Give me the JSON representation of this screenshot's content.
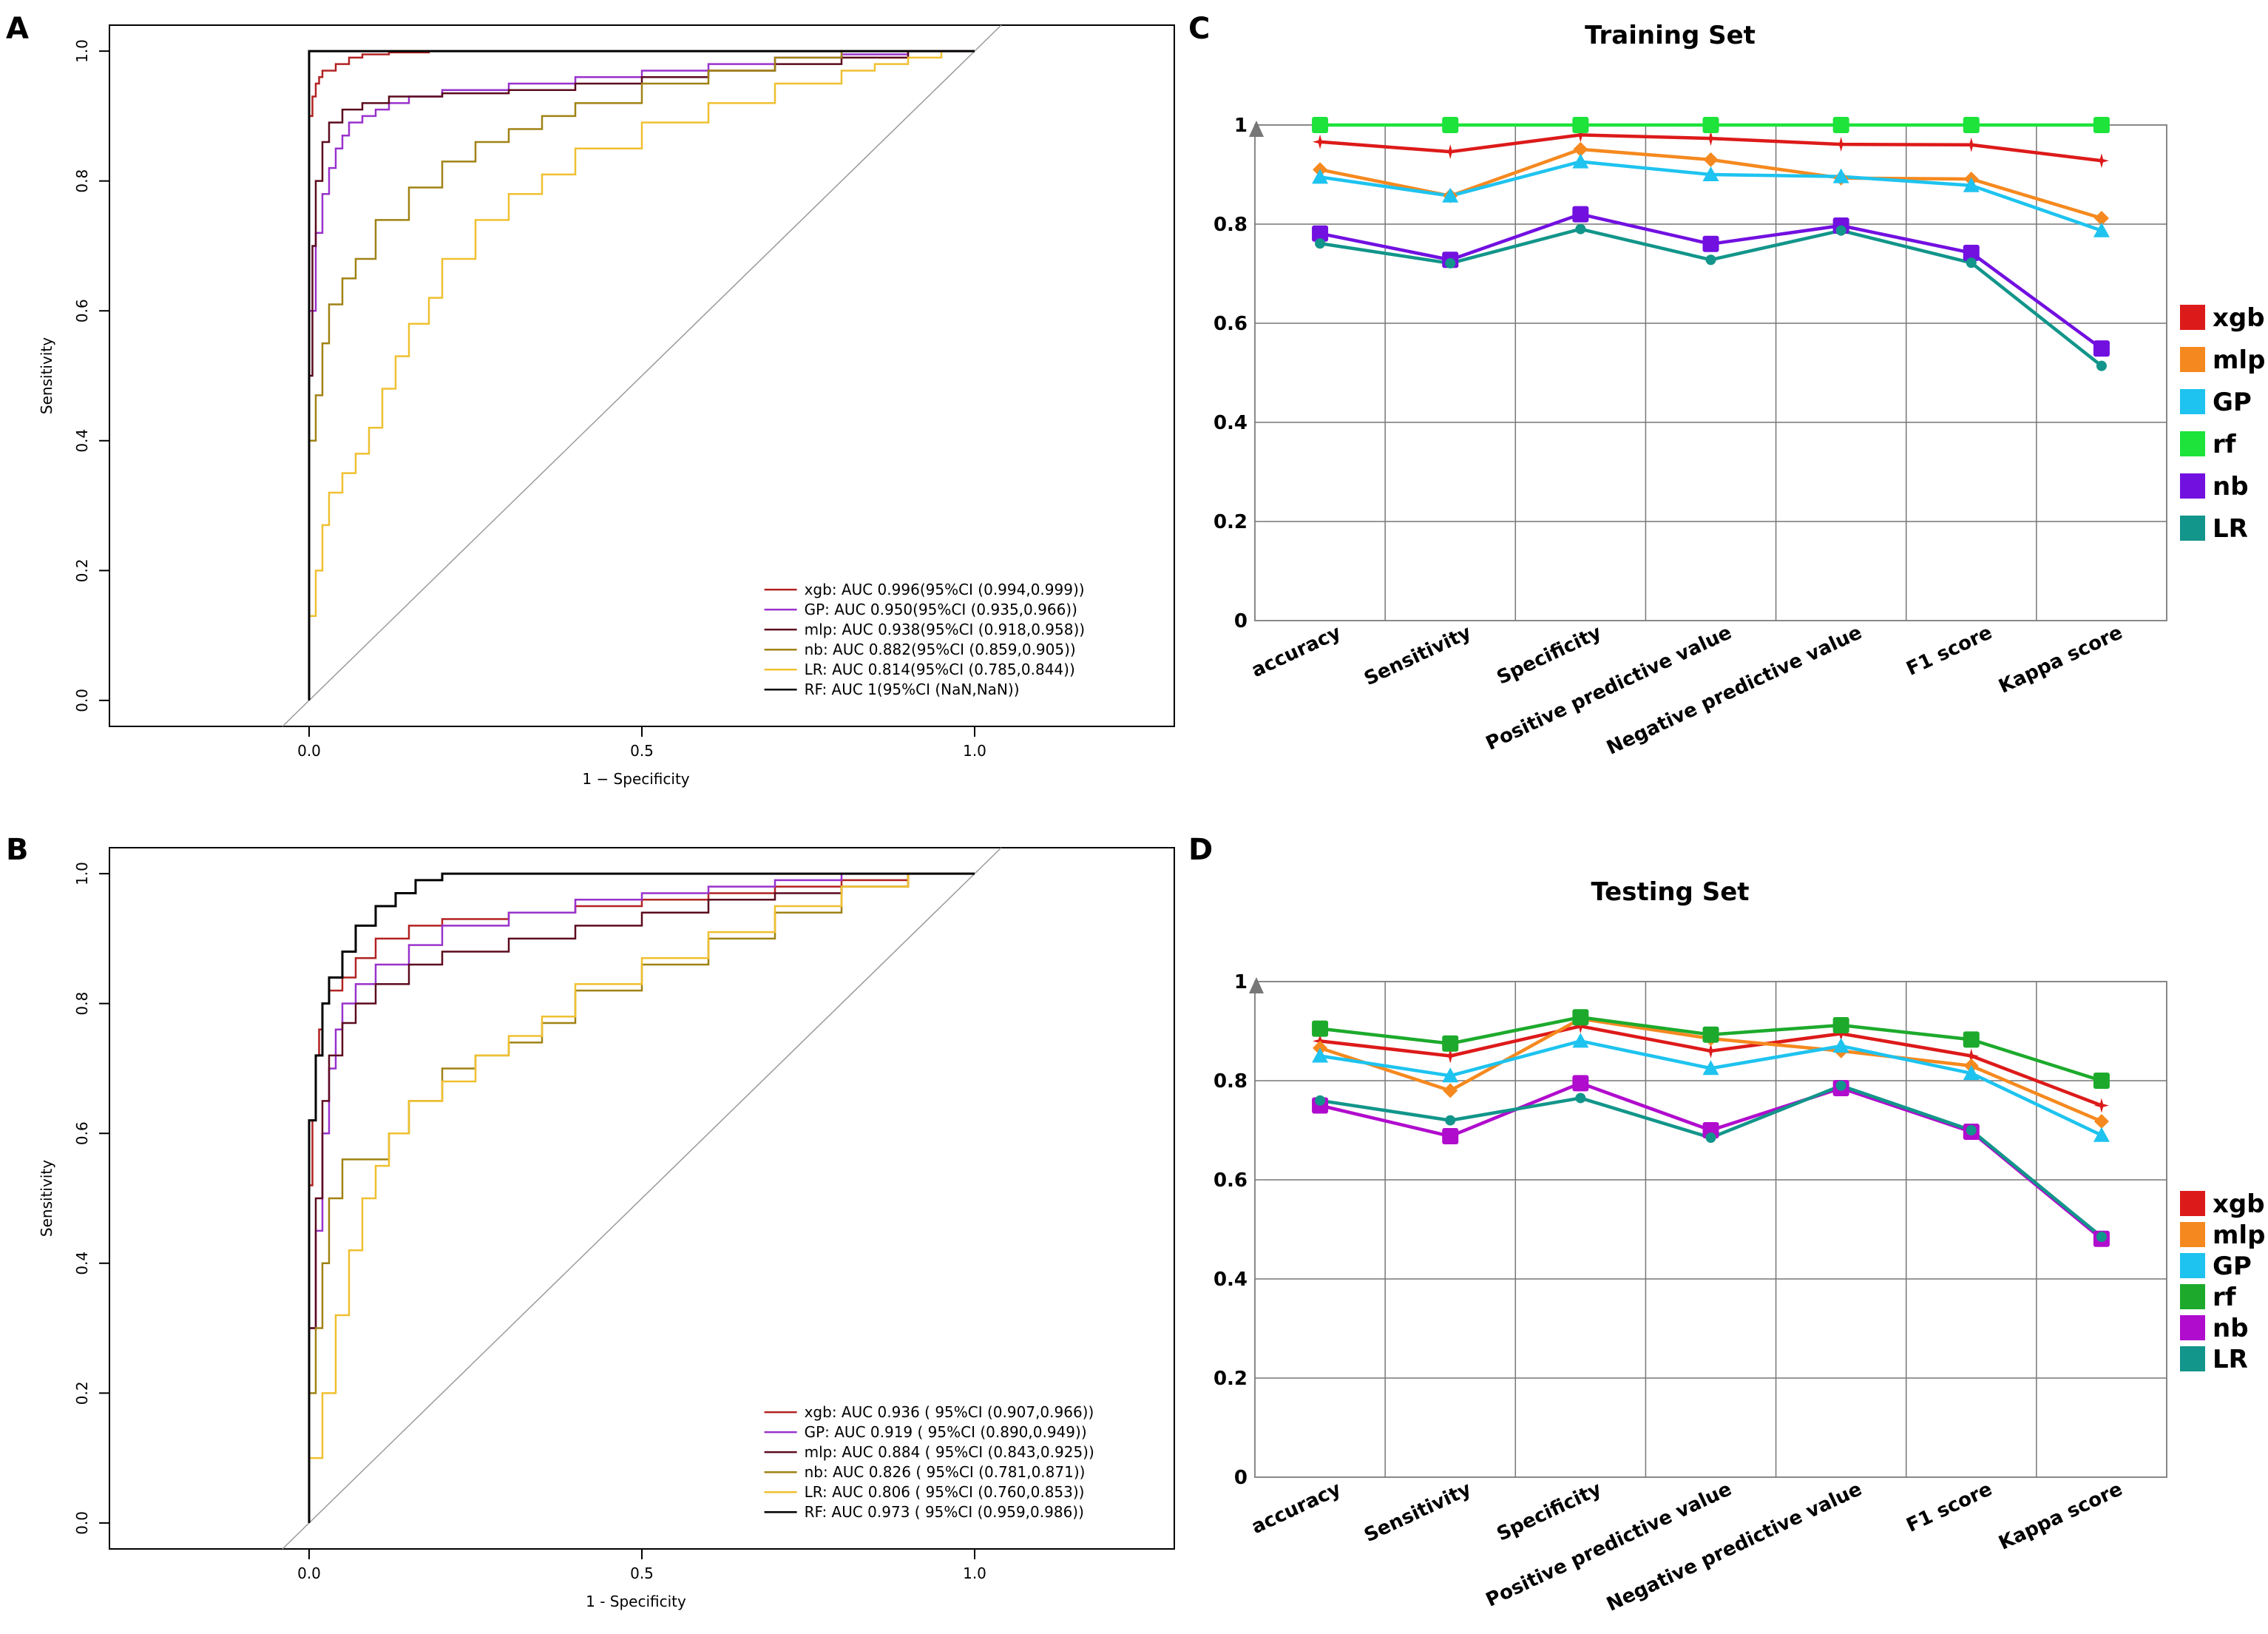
{
  "figure": {
    "panel_labels": [
      "A",
      "B",
      "C",
      "D"
    ]
  },
  "chart_data": [
    {
      "panel": "A",
      "type": "line",
      "subtype": "roc",
      "xlabel": "1 − Specificity",
      "ylabel": "Sensitivity",
      "xlim": [
        -0.3,
        1.3
      ],
      "ylim": [
        -0.04,
        1.04
      ],
      "xticks": [
        "0.0",
        "0.5",
        "1.0"
      ],
      "yticks": [
        "0.0",
        "0.2",
        "0.4",
        "0.6",
        "0.8",
        "1.0"
      ],
      "legend_position": "bottom-right",
      "series": [
        {
          "name": "xgb",
          "label": "xgb: AUC 0.996(95%CI (0.994,0.999))",
          "color": "#b22222",
          "x": [
            0,
            0,
            0.005,
            0.01,
            0.015,
            0.02,
            0.04,
            0.06,
            0.08,
            0.12,
            0.18,
            0.25,
            1.0
          ],
          "y": [
            0,
            0.85,
            0.9,
            0.93,
            0.95,
            0.96,
            0.97,
            0.98,
            0.99,
            0.995,
            0.998,
            1.0,
            1.0
          ]
        },
        {
          "name": "GP",
          "label": "GP: AUC 0.950(95%CI (0.935,0.966))",
          "color": "#9932cc",
          "x": [
            0,
            0,
            0.01,
            0.02,
            0.03,
            0.04,
            0.05,
            0.06,
            0.08,
            0.1,
            0.12,
            0.15,
            0.2,
            0.3,
            0.4,
            0.5,
            0.6,
            0.7,
            0.8,
            0.9,
            0.95,
            1.0
          ],
          "y": [
            0,
            0.3,
            0.6,
            0.72,
            0.78,
            0.82,
            0.85,
            0.87,
            0.89,
            0.9,
            0.91,
            0.92,
            0.93,
            0.94,
            0.95,
            0.96,
            0.97,
            0.98,
            0.99,
            0.995,
            1.0,
            1.0
          ]
        },
        {
          "name": "mlp",
          "label": "mlp: AUC 0.938(95%CI (0.918,0.958))",
          "color": "#5c0a1e",
          "x": [
            0,
            0,
            0.005,
            0.01,
            0.02,
            0.03,
            0.05,
            0.08,
            0.12,
            0.2,
            0.3,
            0.4,
            0.5,
            0.6,
            0.7,
            0.8,
            0.9,
            0.95,
            1.0
          ],
          "y": [
            0,
            0.22,
            0.5,
            0.7,
            0.8,
            0.86,
            0.89,
            0.91,
            0.92,
            0.93,
            0.935,
            0.94,
            0.95,
            0.96,
            0.97,
            0.98,
            0.99,
            1.0,
            1.0
          ]
        },
        {
          "name": "nb",
          "label": "nb: AUC 0.882(95%CI (0.859,0.905))",
          "color": "#a08214",
          "x": [
            0,
            0,
            0.01,
            0.02,
            0.03,
            0.05,
            0.07,
            0.1,
            0.15,
            0.2,
            0.25,
            0.3,
            0.35,
            0.4,
            0.5,
            0.6,
            0.7,
            0.8,
            0.9,
            1.0
          ],
          "y": [
            0,
            0.3,
            0.4,
            0.47,
            0.55,
            0.61,
            0.65,
            0.68,
            0.74,
            0.79,
            0.83,
            0.86,
            0.88,
            0.9,
            0.92,
            0.95,
            0.97,
            0.99,
            1.0,
            1.0
          ]
        },
        {
          "name": "LR",
          "label": "LR: AUC 0.814(95%CI (0.785,0.844))",
          "color": "#f0c030",
          "x": [
            0,
            0,
            0.01,
            0.02,
            0.03,
            0.05,
            0.07,
            0.09,
            0.11,
            0.13,
            0.15,
            0.18,
            0.2,
            0.25,
            0.3,
            0.35,
            0.4,
            0.5,
            0.6,
            0.7,
            0.8,
            0.85,
            0.9,
            0.95,
            1.0
          ],
          "y": [
            0,
            0.08,
            0.13,
            0.2,
            0.27,
            0.32,
            0.35,
            0.38,
            0.42,
            0.48,
            0.53,
            0.58,
            0.62,
            0.68,
            0.74,
            0.78,
            0.81,
            0.85,
            0.89,
            0.92,
            0.95,
            0.97,
            0.98,
            0.99,
            1.0
          ]
        },
        {
          "name": "RF",
          "label": "RF: AUC 1(95%CI (NaN,NaN))",
          "color": "#000000",
          "x": [
            0,
            0,
            1.0
          ],
          "y": [
            0,
            1.0,
            1.0
          ]
        }
      ]
    },
    {
      "panel": "B",
      "type": "line",
      "subtype": "roc",
      "xlabel": "1 - Specificity",
      "ylabel": "Sensitivity",
      "xlim": [
        -0.3,
        1.3
      ],
      "ylim": [
        -0.04,
        1.04
      ],
      "xticks": [
        "0.0",
        "0.5",
        "1.0"
      ],
      "yticks": [
        "0.0",
        "0.2",
        "0.4",
        "0.6",
        "0.8",
        "1.0"
      ],
      "legend_position": "bottom-right",
      "series": [
        {
          "name": "xgb",
          "label": "xgb: AUC 0.936  ( 95%CI (0.907,0.966))",
          "color": "#b22222",
          "x": [
            0,
            0,
            0.005,
            0.01,
            0.015,
            0.02,
            0.03,
            0.05,
            0.07,
            0.1,
            0.15,
            0.2,
            0.3,
            0.4,
            0.5,
            0.6,
            0.7,
            0.8,
            0.9,
            1.0
          ],
          "y": [
            0,
            0.38,
            0.52,
            0.62,
            0.72,
            0.76,
            0.8,
            0.82,
            0.84,
            0.87,
            0.9,
            0.92,
            0.93,
            0.94,
            0.95,
            0.96,
            0.97,
            0.98,
            0.99,
            1.0
          ]
        },
        {
          "name": "GP",
          "label": "GP: AUC 0.919  ( 95%CI (0.890,0.949))",
          "color": "#9932cc",
          "x": [
            0,
            0,
            0.01,
            0.02,
            0.03,
            0.04,
            0.05,
            0.07,
            0.1,
            0.15,
            0.2,
            0.3,
            0.4,
            0.5,
            0.6,
            0.7,
            0.8,
            0.9,
            1.0
          ],
          "y": [
            0,
            0.22,
            0.3,
            0.45,
            0.6,
            0.7,
            0.76,
            0.8,
            0.83,
            0.86,
            0.89,
            0.92,
            0.94,
            0.96,
            0.97,
            0.98,
            0.99,
            1.0,
            1.0
          ]
        },
        {
          "name": "mlp",
          "label": "mlp: AUC 0.884  ( 95%CI (0.843,0.925))",
          "color": "#5c0a1e",
          "x": [
            0,
            0,
            0.01,
            0.02,
            0.03,
            0.05,
            0.07,
            0.1,
            0.15,
            0.2,
            0.3,
            0.4,
            0.5,
            0.6,
            0.7,
            0.8,
            0.9,
            1.0
          ],
          "y": [
            0,
            0.1,
            0.3,
            0.5,
            0.65,
            0.72,
            0.77,
            0.8,
            0.83,
            0.86,
            0.88,
            0.9,
            0.92,
            0.94,
            0.96,
            0.97,
            0.98,
            1.0
          ]
        },
        {
          "name": "nb",
          "label": "nb: AUC 0.826  ( 95%CI (0.781,0.871))",
          "color": "#a08214",
          "x": [
            0,
            0,
            0.01,
            0.02,
            0.03,
            0.05,
            0.1,
            0.12,
            0.15,
            0.2,
            0.25,
            0.3,
            0.35,
            0.4,
            0.5,
            0.6,
            0.7,
            0.8,
            0.9,
            1.0
          ],
          "y": [
            0,
            0.1,
            0.2,
            0.3,
            0.4,
            0.5,
            0.56,
            0.56,
            0.6,
            0.65,
            0.7,
            0.72,
            0.74,
            0.77,
            0.82,
            0.86,
            0.9,
            0.94,
            0.98,
            1.0
          ]
        },
        {
          "name": "LR",
          "label": "LR: AUC 0.806  ( 95%CI (0.760,0.853))",
          "color": "#f0c030",
          "x": [
            0,
            0,
            0.02,
            0.04,
            0.06,
            0.08,
            0.1,
            0.12,
            0.15,
            0.2,
            0.25,
            0.3,
            0.35,
            0.4,
            0.5,
            0.6,
            0.7,
            0.8,
            0.9,
            1.0
          ],
          "y": [
            0,
            0.04,
            0.1,
            0.2,
            0.32,
            0.42,
            0.5,
            0.55,
            0.6,
            0.65,
            0.68,
            0.72,
            0.75,
            0.78,
            0.83,
            0.87,
            0.91,
            0.95,
            0.98,
            1.0
          ]
        },
        {
          "name": "RF",
          "label": "RF: AUC 0.973  ( 95%CI (0.959,0.986))",
          "color": "#000000",
          "x": [
            0,
            0,
            0.01,
            0.02,
            0.03,
            0.05,
            0.07,
            0.1,
            0.13,
            0.16,
            0.2,
            0.25,
            0.3,
            0.4,
            1.0
          ],
          "y": [
            0,
            0.52,
            0.62,
            0.72,
            0.8,
            0.84,
            0.88,
            0.92,
            0.95,
            0.97,
            0.99,
            1.0,
            1.0,
            1.0,
            1.0
          ]
        }
      ]
    },
    {
      "panel": "C",
      "type": "line",
      "title": "Training Set",
      "categories": [
        "accuracy",
        "Sensitivity",
        "Specificity",
        "Positive predictive value",
        "Negative predictive value",
        "F1 score",
        "Kappa score"
      ],
      "yticks": [
        "0",
        "0.2",
        "0.4",
        "0.6",
        "0.8",
        "1"
      ],
      "ylim": [
        0,
        1
      ],
      "legend_position": "right",
      "series": [
        {
          "name": "xgb",
          "color": "#dd1a1a",
          "marker": "star",
          "values": [
            0.966,
            0.946,
            0.98,
            0.973,
            0.961,
            0.96,
            0.928
          ]
        },
        {
          "name": "mlp",
          "color": "#f5891f",
          "marker": "diamond",
          "values": [
            0.91,
            0.857,
            0.951,
            0.93,
            0.893,
            0.891,
            0.812
          ]
        },
        {
          "name": "GP",
          "color": "#1ec3ef",
          "marker": "triangle",
          "values": [
            0.895,
            0.857,
            0.926,
            0.9,
            0.896,
            0.878,
            0.787
          ]
        },
        {
          "name": "rf",
          "color": "#1de33a",
          "marker": "square",
          "values": [
            1,
            1,
            1,
            1,
            1,
            1,
            1
          ]
        },
        {
          "name": "nb",
          "color": "#7210e0",
          "marker": "square",
          "values": [
            0.781,
            0.728,
            0.82,
            0.76,
            0.797,
            0.742,
            0.549
          ]
        },
        {
          "name": "LR",
          "color": "#12958a",
          "marker": "circle",
          "values": [
            0.761,
            0.721,
            0.79,
            0.728,
            0.787,
            0.722,
            0.514
          ]
        }
      ]
    },
    {
      "panel": "D",
      "type": "line",
      "title": "Testing Set",
      "categories": [
        "accuracy",
        "Sensitivity",
        "Specificity",
        "Positive predictive value",
        "Negative predictive value",
        "F1 score",
        "Kappa score"
      ],
      "yticks": [
        "0",
        "0.2",
        "0.4",
        "0.6",
        "0.8",
        "1"
      ],
      "ylim": [
        0,
        1
      ],
      "legend_position": "right",
      "series": [
        {
          "name": "xgb",
          "color": "#dd1a1a",
          "marker": "star",
          "values": [
            0.88,
            0.85,
            0.91,
            0.86,
            0.895,
            0.85,
            0.75
          ]
        },
        {
          "name": "mlp",
          "color": "#f5891f",
          "marker": "diamond",
          "values": [
            0.866,
            0.78,
            0.925,
            0.885,
            0.86,
            0.83,
            0.718
          ]
        },
        {
          "name": "GP",
          "color": "#1ec3ef",
          "marker": "triangle",
          "values": [
            0.85,
            0.81,
            0.88,
            0.825,
            0.87,
            0.815,
            0.69
          ]
        },
        {
          "name": "rf",
          "color": "#1daa2c",
          "marker": "square",
          "values": [
            0.905,
            0.875,
            0.928,
            0.893,
            0.912,
            0.883,
            0.8
          ]
        },
        {
          "name": "nb",
          "color": "#b00ccd",
          "marker": "square",
          "values": [
            0.75,
            0.688,
            0.795,
            0.7,
            0.785,
            0.697,
            0.481
          ]
        },
        {
          "name": "LR",
          "color": "#12958a",
          "marker": "circle",
          "values": [
            0.76,
            0.72,
            0.765,
            0.685,
            0.79,
            0.7,
            0.485
          ]
        }
      ]
    }
  ]
}
